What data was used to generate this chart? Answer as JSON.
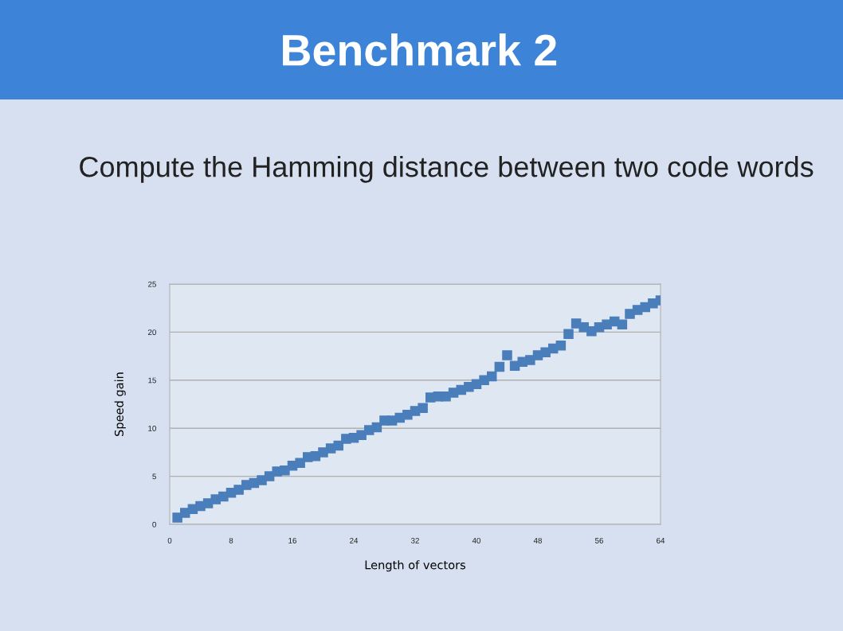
{
  "chart_data": {
    "type": "scatter",
    "title": "Benchmark 2",
    "subtitle": "Compute the Hamming distance between two code words",
    "xlabel": "Length of vectors",
    "ylabel": "Speed gain",
    "x": [
      1,
      2,
      3,
      4,
      5,
      6,
      7,
      8,
      9,
      10,
      11,
      12,
      13,
      14,
      15,
      16,
      17,
      18,
      19,
      20,
      21,
      22,
      23,
      24,
      25,
      26,
      27,
      28,
      29,
      30,
      31,
      32,
      33,
      34,
      35,
      36,
      37,
      38,
      39,
      40,
      41,
      42,
      43,
      44,
      45,
      46,
      47,
      48,
      49,
      50,
      51,
      52,
      53,
      54,
      55,
      56,
      57,
      58,
      59,
      60,
      61,
      62,
      63,
      64
    ],
    "series": [
      {
        "color": "#4a7ebb",
        "values": [
          0.7,
          1.2,
          1.6,
          1.9,
          2.2,
          2.6,
          2.9,
          3.3,
          3.6,
          4.1,
          4.3,
          4.6,
          5.0,
          5.5,
          5.6,
          6.1,
          6.4,
          7.0,
          7.1,
          7.5,
          7.9,
          8.2,
          8.9,
          9.0,
          9.3,
          9.8,
          10.1,
          10.8,
          10.8,
          11.1,
          11.4,
          11.8,
          12.1,
          13.2,
          13.3,
          13.3,
          13.7,
          14.0,
          14.3,
          14.6,
          15.0,
          15.4,
          16.4,
          17.6,
          16.5,
          16.9,
          17.1,
          17.6,
          17.9,
          18.3,
          18.6,
          19.8,
          20.9,
          20.5,
          20.1,
          20.5,
          20.8,
          21.1,
          20.8,
          21.9,
          22.3,
          22.6,
          23.0,
          23.3
        ]
      }
    ],
    "xlim": [
      0,
      64
    ],
    "xticks": [
      0,
      8,
      16,
      24,
      32,
      40,
      48,
      56,
      64
    ],
    "ylim": [
      0,
      25
    ],
    "yticks": [
      0,
      5,
      10,
      15,
      20,
      25
    ],
    "grid": "y",
    "marker": "square",
    "legend": false
  }
}
